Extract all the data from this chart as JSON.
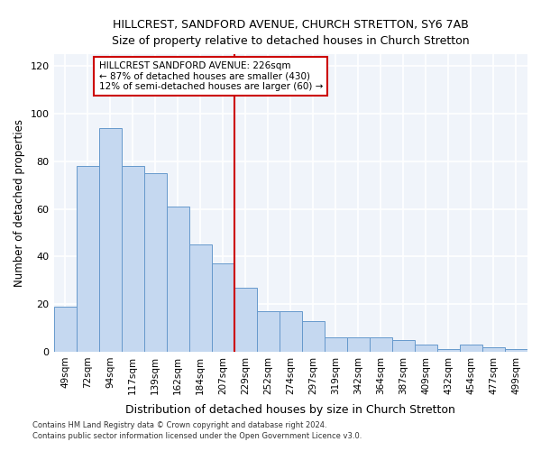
{
  "title": "HILLCREST, SANDFORD AVENUE, CHURCH STRETTON, SY6 7AB",
  "subtitle": "Size of property relative to detached houses in Church Stretton",
  "xlabel": "Distribution of detached houses by size in Church Stretton",
  "ylabel": "Number of detached properties",
  "categories": [
    "49sqm",
    "72sqm",
    "94sqm",
    "117sqm",
    "139sqm",
    "162sqm",
    "184sqm",
    "207sqm",
    "229sqm",
    "252sqm",
    "274sqm",
    "297sqm",
    "319sqm",
    "342sqm",
    "364sqm",
    "387sqm",
    "409sqm",
    "432sqm",
    "454sqm",
    "477sqm",
    "499sqm"
  ],
  "values": [
    19,
    78,
    94,
    78,
    75,
    61,
    45,
    37,
    27,
    17,
    17,
    13,
    6,
    6,
    6,
    5,
    3,
    1,
    3,
    2,
    1
  ],
  "bar_color": "#c5d8f0",
  "bar_edge_color": "#6699cc",
  "reference_line_index": 8,
  "reference_line_color": "#cc0000",
  "annotation_title": "HILLCREST SANDFORD AVENUE: 226sqm",
  "annotation_line1": "← 87% of detached houses are smaller (430)",
  "annotation_line2": "12% of semi-detached houses are larger (60) →",
  "annotation_box_color": "#cc0000",
  "ylim": [
    0,
    125
  ],
  "yticks": [
    0,
    20,
    40,
    60,
    80,
    100,
    120
  ],
  "footer1": "Contains HM Land Registry data © Crown copyright and database right 2024.",
  "footer2": "Contains public sector information licensed under the Open Government Licence v3.0.",
  "bg_color": "#ffffff",
  "plot_bg_color": "#f0f4fa",
  "grid_color": "white"
}
